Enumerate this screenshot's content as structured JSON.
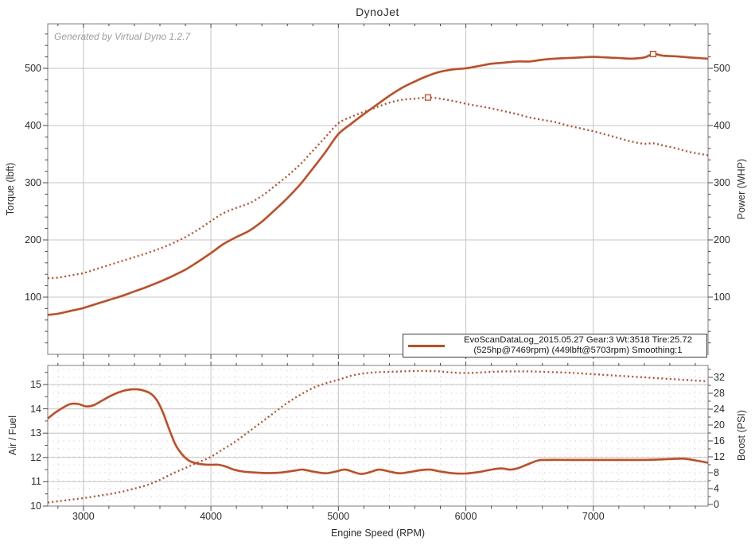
{
  "title": "DynoJet",
  "watermark": "Generated by Virtual Dyno 1.2.7",
  "legend": {
    "line1": "EvoScanDataLog_2015.05.27 Gear:3 Wt:3518 Tire:25.72",
    "line2": "(525hp@7469rpm) (449lbft@5703rpm) Smoothing:1"
  },
  "colors": {
    "curve": "#c84a21",
    "grid_major": "#c6c6c6",
    "grid_minor": "#cbcbcb",
    "grid_minor_rose": "#d9bcae",
    "plot_border": "#7c7c7c",
    "tick": "#4a4a4a",
    "text": "#2d2d2d"
  },
  "chart_data": [
    {
      "type": "line",
      "panel": "torque-power",
      "ylabel_left": "Torque (lbft)",
      "ylabel_right": "Power (WHP)",
      "y_range": [
        0,
        578
      ],
      "y_ticks": [
        100,
        200,
        300,
        400,
        500
      ],
      "x_range": [
        2720,
        7900
      ],
      "x_gridlines": [
        3000,
        4000,
        5000,
        6000,
        7000
      ],
      "grid": "major-only",
      "series": [
        {
          "name": "power_whp",
          "style": "solid",
          "points": [
            [
              2720,
              69
            ],
            [
              2800,
              71
            ],
            [
              2900,
              76
            ],
            [
              3000,
              81
            ],
            [
              3100,
              88
            ],
            [
              3200,
              95
            ],
            [
              3300,
              102
            ],
            [
              3400,
              110
            ],
            [
              3500,
              118
            ],
            [
              3600,
              127
            ],
            [
              3700,
              137
            ],
            [
              3800,
              148
            ],
            [
              3900,
              162
            ],
            [
              4000,
              177
            ],
            [
              4100,
              193
            ],
            [
              4200,
              205
            ],
            [
              4300,
              216
            ],
            [
              4400,
              232
            ],
            [
              4500,
              252
            ],
            [
              4600,
              273
            ],
            [
              4700,
              297
            ],
            [
              4800,
              325
            ],
            [
              4900,
              354
            ],
            [
              5000,
              385
            ],
            [
              5100,
              403
            ],
            [
              5200,
              420
            ],
            [
              5300,
              436
            ],
            [
              5400,
              452
            ],
            [
              5500,
              466
            ],
            [
              5600,
              477
            ],
            [
              5703,
              487
            ],
            [
              5800,
              494
            ],
            [
              5900,
              498
            ],
            [
              6000,
              500
            ],
            [
              6100,
              504
            ],
            [
              6200,
              508
            ],
            [
              6300,
              510
            ],
            [
              6400,
              512
            ],
            [
              6500,
              512
            ],
            [
              6600,
              515
            ],
            [
              6700,
              517
            ],
            [
              6800,
              518
            ],
            [
              6900,
              519
            ],
            [
              7000,
              520
            ],
            [
              7100,
              519
            ],
            [
              7200,
              518
            ],
            [
              7300,
              517
            ],
            [
              7400,
              519
            ],
            [
              7469,
              525
            ],
            [
              7550,
              522
            ],
            [
              7650,
              521
            ],
            [
              7750,
              519
            ],
            [
              7900,
              517
            ]
          ]
        },
        {
          "name": "torque_lbft",
          "style": "dotted",
          "points": [
            [
              2720,
              133
            ],
            [
              2800,
              134
            ],
            [
              2900,
              138
            ],
            [
              3000,
              142
            ],
            [
              3100,
              149
            ],
            [
              3200,
              156
            ],
            [
              3300,
              163
            ],
            [
              3400,
              170
            ],
            [
              3500,
              177
            ],
            [
              3600,
              185
            ],
            [
              3700,
              194
            ],
            [
              3800,
              205
            ],
            [
              3900,
              218
            ],
            [
              4000,
              233
            ],
            [
              4100,
              247
            ],
            [
              4200,
              256
            ],
            [
              4300,
              264
            ],
            [
              4400,
              277
            ],
            [
              4500,
              294
            ],
            [
              4600,
              312
            ],
            [
              4700,
              332
            ],
            [
              4800,
              356
            ],
            [
              4900,
              380
            ],
            [
              5000,
              404
            ],
            [
              5100,
              415
            ],
            [
              5200,
              424
            ],
            [
              5300,
              432
            ],
            [
              5400,
              440
            ],
            [
              5500,
              445
            ],
            [
              5600,
              447
            ],
            [
              5703,
              449
            ],
            [
              5800,
              447
            ],
            [
              5900,
              443
            ],
            [
              6000,
              438
            ],
            [
              6100,
              434
            ],
            [
              6200,
              430
            ],
            [
              6300,
              425
            ],
            [
              6400,
              420
            ],
            [
              6500,
              414
            ],
            [
              6600,
              410
            ],
            [
              6700,
              406
            ],
            [
              6800,
              400
            ],
            [
              6900,
              395
            ],
            [
              7000,
              390
            ],
            [
              7100,
              384
            ],
            [
              7200,
              378
            ],
            [
              7300,
              372
            ],
            [
              7400,
              368
            ],
            [
              7469,
              369
            ],
            [
              7550,
              365
            ],
            [
              7650,
              360
            ],
            [
              7750,
              354
            ],
            [
              7900,
              348
            ]
          ]
        }
      ],
      "markers": [
        {
          "series": "torque_lbft",
          "rpm": 5703,
          "value": 449
        },
        {
          "series": "power_whp",
          "rpm": 7469,
          "value": 525
        }
      ]
    },
    {
      "type": "line",
      "panel": "afr-boost",
      "xlabel": "Engine Speed (RPM)",
      "x_ticks": [
        3000,
        4000,
        5000,
        6000,
        7000
      ],
      "x_range": [
        2720,
        7900
      ],
      "ylabel_left": "Air / Fuel",
      "y_left_range": [
        10,
        15.8
      ],
      "y_left_ticks": [
        10,
        11,
        12,
        13,
        14,
        15
      ],
      "ylabel_right": "Boost (PSI)",
      "y_right_range": [
        -0.4,
        35
      ],
      "y_right_ticks": [
        0,
        4,
        8,
        12,
        16,
        20,
        24,
        28,
        32
      ],
      "grid": "major-plus-dotted-minor",
      "series": [
        {
          "name": "air_fuel",
          "axis": "left",
          "style": "solid",
          "points": [
            [
              2720,
              13.6
            ],
            [
              2780,
              13.85
            ],
            [
              2840,
              14.05
            ],
            [
              2900,
              14.2
            ],
            [
              2960,
              14.2
            ],
            [
              3020,
              14.1
            ],
            [
              3080,
              14.15
            ],
            [
              3150,
              14.35
            ],
            [
              3220,
              14.55
            ],
            [
              3300,
              14.72
            ],
            [
              3380,
              14.8
            ],
            [
              3450,
              14.78
            ],
            [
              3520,
              14.65
            ],
            [
              3570,
              14.4
            ],
            [
              3620,
              13.9
            ],
            [
              3670,
              13.2
            ],
            [
              3720,
              12.55
            ],
            [
              3770,
              12.15
            ],
            [
              3820,
              11.9
            ],
            [
              3870,
              11.78
            ],
            [
              3930,
              11.72
            ],
            [
              4000,
              11.7
            ],
            [
              4060,
              11.7
            ],
            [
              4120,
              11.62
            ],
            [
              4180,
              11.5
            ],
            [
              4250,
              11.42
            ],
            [
              4350,
              11.38
            ],
            [
              4450,
              11.36
            ],
            [
              4550,
              11.38
            ],
            [
              4650,
              11.45
            ],
            [
              4720,
              11.5
            ],
            [
              4800,
              11.42
            ],
            [
              4900,
              11.35
            ],
            [
              4980,
              11.42
            ],
            [
              5050,
              11.5
            ],
            [
              5120,
              11.4
            ],
            [
              5180,
              11.32
            ],
            [
              5250,
              11.4
            ],
            [
              5320,
              11.5
            ],
            [
              5400,
              11.42
            ],
            [
              5480,
              11.35
            ],
            [
              5560,
              11.4
            ],
            [
              5650,
              11.48
            ],
            [
              5720,
              11.5
            ],
            [
              5800,
              11.42
            ],
            [
              5900,
              11.35
            ],
            [
              6000,
              11.34
            ],
            [
              6100,
              11.4
            ],
            [
              6200,
              11.5
            ],
            [
              6280,
              11.55
            ],
            [
              6350,
              11.5
            ],
            [
              6420,
              11.58
            ],
            [
              6500,
              11.75
            ],
            [
              6570,
              11.88
            ],
            [
              6650,
              11.9
            ],
            [
              6800,
              11.9
            ],
            [
              7000,
              11.9
            ],
            [
              7200,
              11.9
            ],
            [
              7400,
              11.9
            ],
            [
              7550,
              11.92
            ],
            [
              7700,
              11.95
            ],
            [
              7800,
              11.88
            ],
            [
              7900,
              11.78
            ]
          ]
        },
        {
          "name": "boost_psi",
          "axis": "right",
          "style": "dotted",
          "points": [
            [
              2720,
              0.5
            ],
            [
              2800,
              0.8
            ],
            [
              2900,
              1.2
            ],
            [
              3000,
              1.6
            ],
            [
              3100,
              2.1
            ],
            [
              3200,
              2.6
            ],
            [
              3300,
              3.2
            ],
            [
              3400,
              4.0
            ],
            [
              3500,
              4.9
            ],
            [
              3600,
              6.2
            ],
            [
              3700,
              7.8
            ],
            [
              3800,
              9.2
            ],
            [
              3900,
              10.6
            ],
            [
              4000,
              12.0
            ],
            [
              4100,
              14.0
            ],
            [
              4200,
              16.0
            ],
            [
              4300,
              18.4
            ],
            [
              4400,
              20.8
            ],
            [
              4500,
              23.2
            ],
            [
              4600,
              25.6
            ],
            [
              4700,
              27.6
            ],
            [
              4800,
              29.3
            ],
            [
              4900,
              30.5
            ],
            [
              5000,
              31.4
            ],
            [
              5100,
              32.4
            ],
            [
              5200,
              33.0
            ],
            [
              5300,
              33.3
            ],
            [
              5400,
              33.4
            ],
            [
              5500,
              33.5
            ],
            [
              5600,
              33.6
            ],
            [
              5700,
              33.6
            ],
            [
              5800,
              33.5
            ],
            [
              5900,
              33.2
            ],
            [
              6000,
              33.1
            ],
            [
              6100,
              33.2
            ],
            [
              6200,
              33.4
            ],
            [
              6300,
              33.5
            ],
            [
              6400,
              33.5
            ],
            [
              6500,
              33.5
            ],
            [
              6600,
              33.4
            ],
            [
              6700,
              33.3
            ],
            [
              6800,
              33.2
            ],
            [
              6900,
              33.0
            ],
            [
              7000,
              32.8
            ],
            [
              7100,
              32.6
            ],
            [
              7200,
              32.4
            ],
            [
              7300,
              32.2
            ],
            [
              7400,
              32.0
            ],
            [
              7500,
              31.8
            ],
            [
              7600,
              31.6
            ],
            [
              7700,
              31.4
            ],
            [
              7800,
              31.2
            ],
            [
              7900,
              31.0
            ]
          ]
        }
      ]
    }
  ]
}
